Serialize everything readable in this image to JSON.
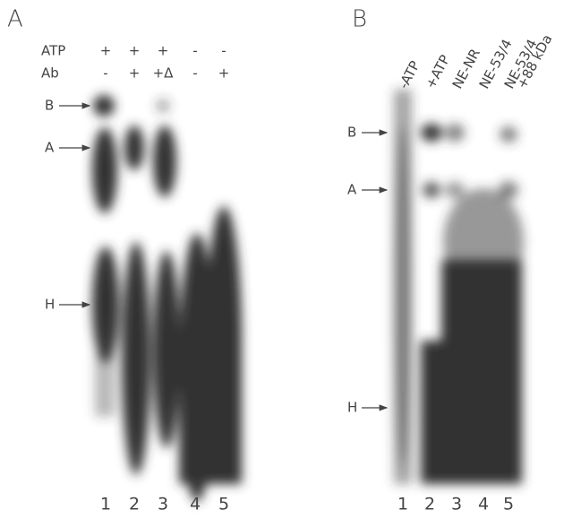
{
  "panels": [
    {
      "label": "A",
      "rows": [
        {
          "name": "ATP",
          "values": [
            "+",
            "+",
            "+",
            "-",
            "-"
          ]
        },
        {
          "name": "Ab",
          "values": [
            "-",
            "+",
            "+Δ",
            "-",
            "+"
          ]
        }
      ],
      "markers": [
        "B",
        "A",
        "H"
      ],
      "lanes": [
        "1",
        "2",
        "3",
        "4",
        "5"
      ]
    },
    {
      "label": "B",
      "headers": [
        [
          "-ATP"
        ],
        [
          "+ATP"
        ],
        [
          "NE-NR"
        ],
        [
          "NE-53/4"
        ],
        [
          "NE-53/4",
          "+88 kDa"
        ]
      ],
      "markers": [
        "B",
        "A",
        "H"
      ],
      "lanes": [
        "1",
        "2",
        "3",
        "4",
        "5"
      ]
    }
  ]
}
